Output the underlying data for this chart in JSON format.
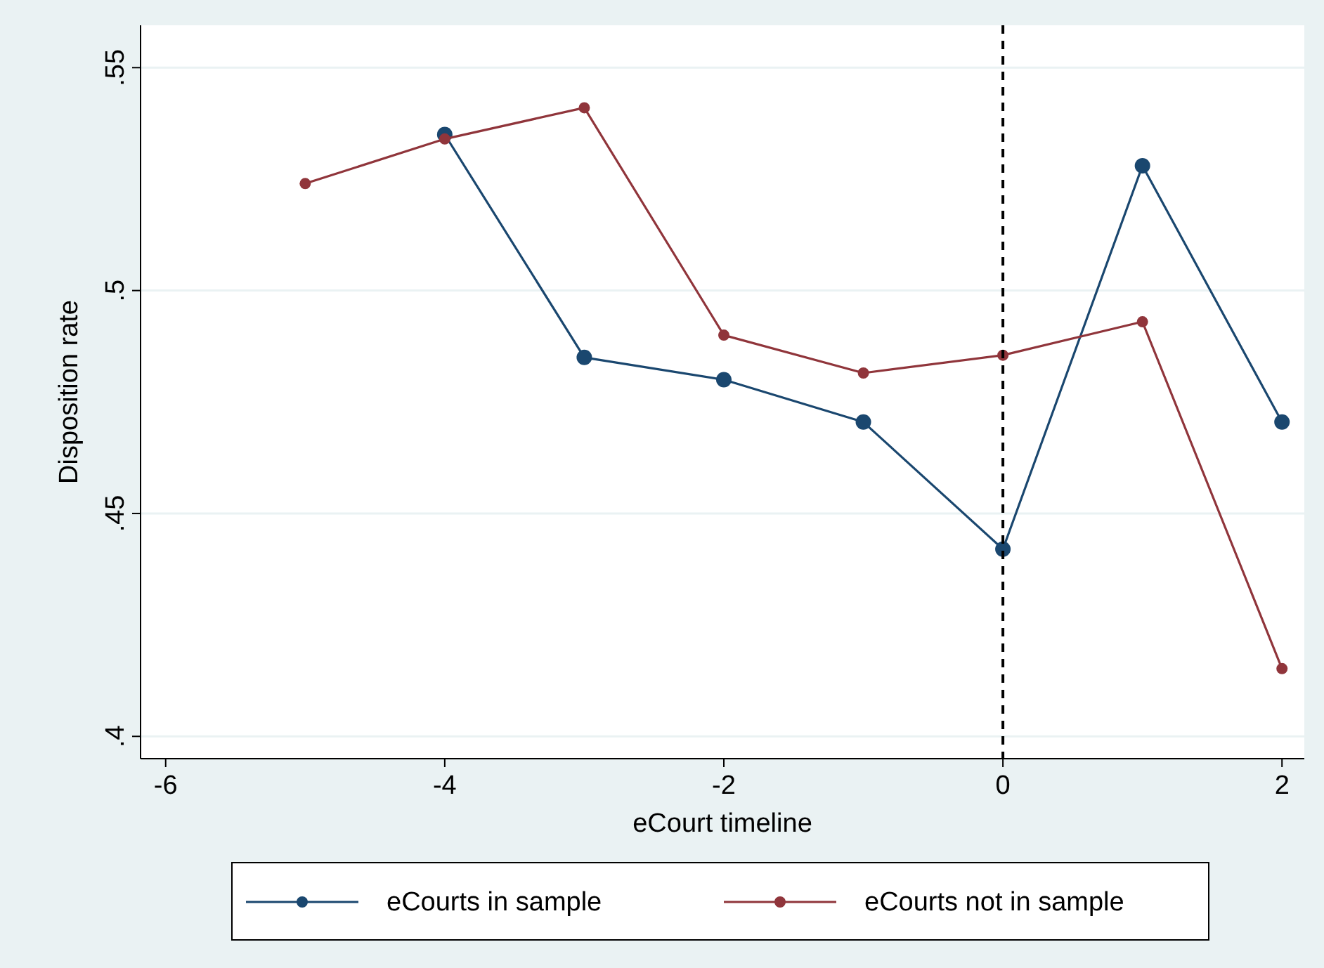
{
  "chart_data": {
    "type": "line",
    "xlabel": "eCourt timeline",
    "ylabel": "Disposition rate",
    "xlim": [
      -6.18,
      2.16
    ],
    "xticks": [
      -6,
      -4,
      -2,
      0,
      2
    ],
    "ylim": [
      0.395,
      0.5595
    ],
    "yticks": [
      {
        "value": 0.4,
        "label": ".4"
      },
      {
        "value": 0.45,
        "label": ".45"
      },
      {
        "value": 0.5,
        "label": ".5"
      },
      {
        "value": 0.55,
        "label": ".55"
      }
    ],
    "grid": "y",
    "legend": "bottom",
    "marker": "circle",
    "line_style": "solid",
    "ref_lines": [
      {
        "axis": "x",
        "value": 0,
        "color": "#000000",
        "line_style": "dashed"
      }
    ],
    "series": [
      {
        "name": "eCourts in sample",
        "color": "#1a476f",
        "x": [
          -4,
          -3,
          -2,
          -1,
          0,
          1,
          2
        ],
        "values": [
          0.535,
          0.485,
          0.48,
          0.4705,
          0.442,
          0.528,
          0.4705
        ]
      },
      {
        "name": "eCourts not in sample",
        "color": "#90353b",
        "x": [
          -5,
          -4,
          -3,
          -2,
          -1,
          0,
          1,
          2
        ],
        "values": [
          0.524,
          0.534,
          0.541,
          0.49,
          0.4815,
          0.4855,
          0.493,
          0.4152
        ]
      }
    ]
  }
}
